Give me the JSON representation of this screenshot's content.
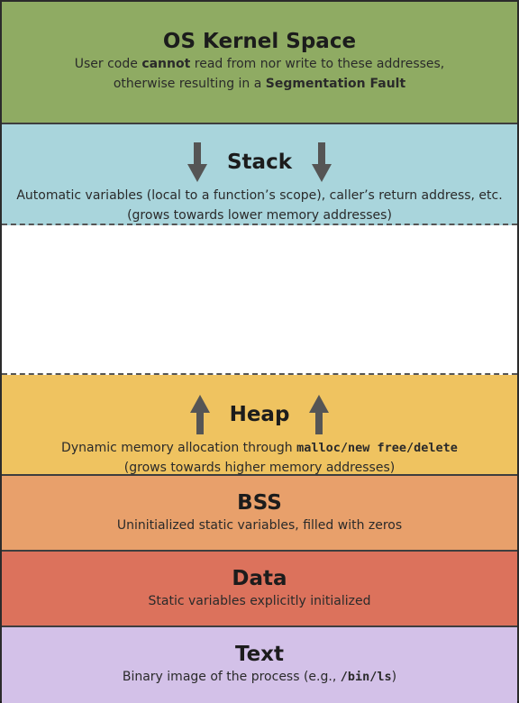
{
  "kernel": {
    "title": "OS Kernel Space",
    "line1_a": "User code ",
    "line1_b": "cannot",
    "line1_c": " read from nor write to these addresses,",
    "line2_a": "otherwise resulting in a ",
    "line2_b": "Segmentation Fault"
  },
  "stack": {
    "title": "Stack",
    "line1": "Automatic variables (local to a function’s scope), caller’s return address, etc.",
    "line2": "(grows towards lower memory addresses)",
    "arrow_icon": "arrow-down-icon"
  },
  "heap": {
    "title": "Heap",
    "line1_a": "Dynamic memory allocation through ",
    "line1_code": "malloc/new free/delete",
    "line2": "(grows towards higher memory addresses)",
    "arrow_icon": "arrow-up-icon"
  },
  "bss": {
    "title": "BSS",
    "line1": "Uninitialized static variables, filled with zeros"
  },
  "data": {
    "title": "Data",
    "line1": "Static variables explicitly initialized"
  },
  "text": {
    "title": "Text",
    "line1_a": "Binary image of the process (e.g., ",
    "line1_code": "/bin/ls",
    "line1_c": ")"
  },
  "colors": {
    "kernel": "#8fab63",
    "stack": "#a9d5dc",
    "free": "#ffffff",
    "heap": "#efc360",
    "bss": "#e8a06b",
    "data": "#dc725c",
    "text": "#d3c1e8",
    "arrow": "#555555"
  }
}
